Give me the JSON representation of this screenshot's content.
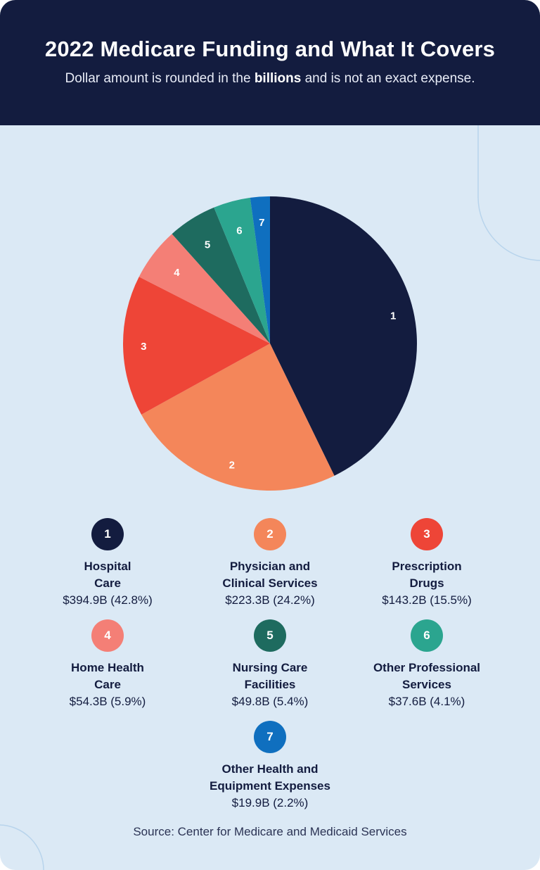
{
  "header": {
    "title": "2022 Medicare Funding and What It Covers",
    "subtitle_pre": "Dollar amount is rounded in the ",
    "subtitle_bold": "billions",
    "subtitle_post": " and is not an exact expense."
  },
  "chart_data": {
    "type": "pie",
    "title": "2022 Medicare Funding and What It Covers",
    "slices": [
      {
        "id": "1",
        "name_lines": [
          "Hospital",
          "Care"
        ],
        "value": 394.9,
        "percent": 42.8,
        "value_text": "$394.9B (42.8%)",
        "color": "#131c3f"
      },
      {
        "id": "2",
        "name_lines": [
          "Physician and",
          "Clinical Services"
        ],
        "value": 223.3,
        "percent": 24.2,
        "value_text": "$223.3B (24.2%)",
        "color": "#f4865a"
      },
      {
        "id": "3",
        "name_lines": [
          "Prescription",
          "Drugs"
        ],
        "value": 143.2,
        "percent": 15.5,
        "value_text": "$143.2B (15.5%)",
        "color": "#ee4537"
      },
      {
        "id": "4",
        "name_lines": [
          "Home Health",
          "Care"
        ],
        "value": 54.3,
        "percent": 5.9,
        "value_text": "$54.3B (5.9%)",
        "color": "#f47f76"
      },
      {
        "id": "5",
        "name_lines": [
          "Nursing Care",
          "Facilities"
        ],
        "value": 49.8,
        "percent": 5.4,
        "value_text": "$49.8B (5.4%)",
        "color": "#1e6b5f"
      },
      {
        "id": "6",
        "name_lines": [
          "Other Professional",
          "Services"
        ],
        "value": 37.6,
        "percent": 4.1,
        "value_text": "$37.6B (4.1%)",
        "color": "#2ba58f"
      },
      {
        "id": "7",
        "name_lines": [
          "Other Health and",
          "Equipment Expenses"
        ],
        "value": 19.9,
        "percent": 2.2,
        "value_text": "$19.9B (2.2%)",
        "color": "#0f6fbf"
      }
    ]
  },
  "footer": {
    "source": "Source: Center for Medicare and Medicaid Services"
  }
}
